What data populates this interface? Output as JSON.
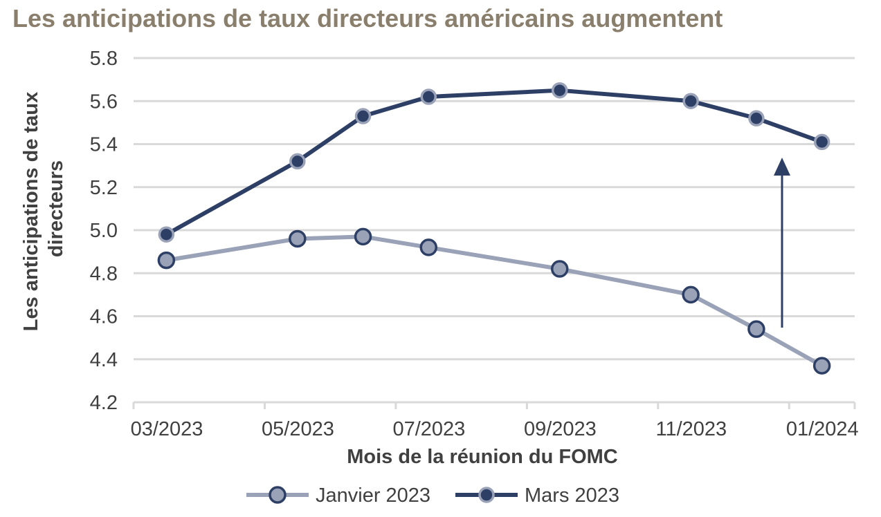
{
  "title": "Les anticipations de taux directeurs américains augmentent",
  "chart_data": {
    "type": "line",
    "title": "Les anticipations de taux directeurs américains augmentent",
    "xlabel": "Mois de la réunion du FOMC",
    "ylabel": "Les anticipations de taux directeurs",
    "x_tick_labels": [
      "03/2023",
      "05/2023",
      "07/2023",
      "09/2023",
      "11/2023",
      "01/2024"
    ],
    "y_tick_labels": [
      "4.2",
      "4.4",
      "4.6",
      "4.8",
      "5.0",
      "5.2",
      "5.4",
      "5.6",
      "5.8"
    ],
    "ylim": [
      4.2,
      5.8
    ],
    "grid": "horizontal",
    "legend_position": "bottom",
    "meeting_positions": [
      0.5,
      2.5,
      3.5,
      4.5,
      6.5,
      8.5,
      9.5,
      10.5
    ],
    "series": [
      {
        "name": "Janvier 2023",
        "color": "#9aa2b8",
        "values": [
          4.86,
          4.96,
          4.97,
          4.92,
          4.82,
          4.7,
          4.54,
          4.37
        ]
      },
      {
        "name": "Mars 2023",
        "color": "#2e3f66",
        "values": [
          4.98,
          5.32,
          5.53,
          5.62,
          5.65,
          5.6,
          5.52,
          5.41
        ]
      }
    ]
  }
}
